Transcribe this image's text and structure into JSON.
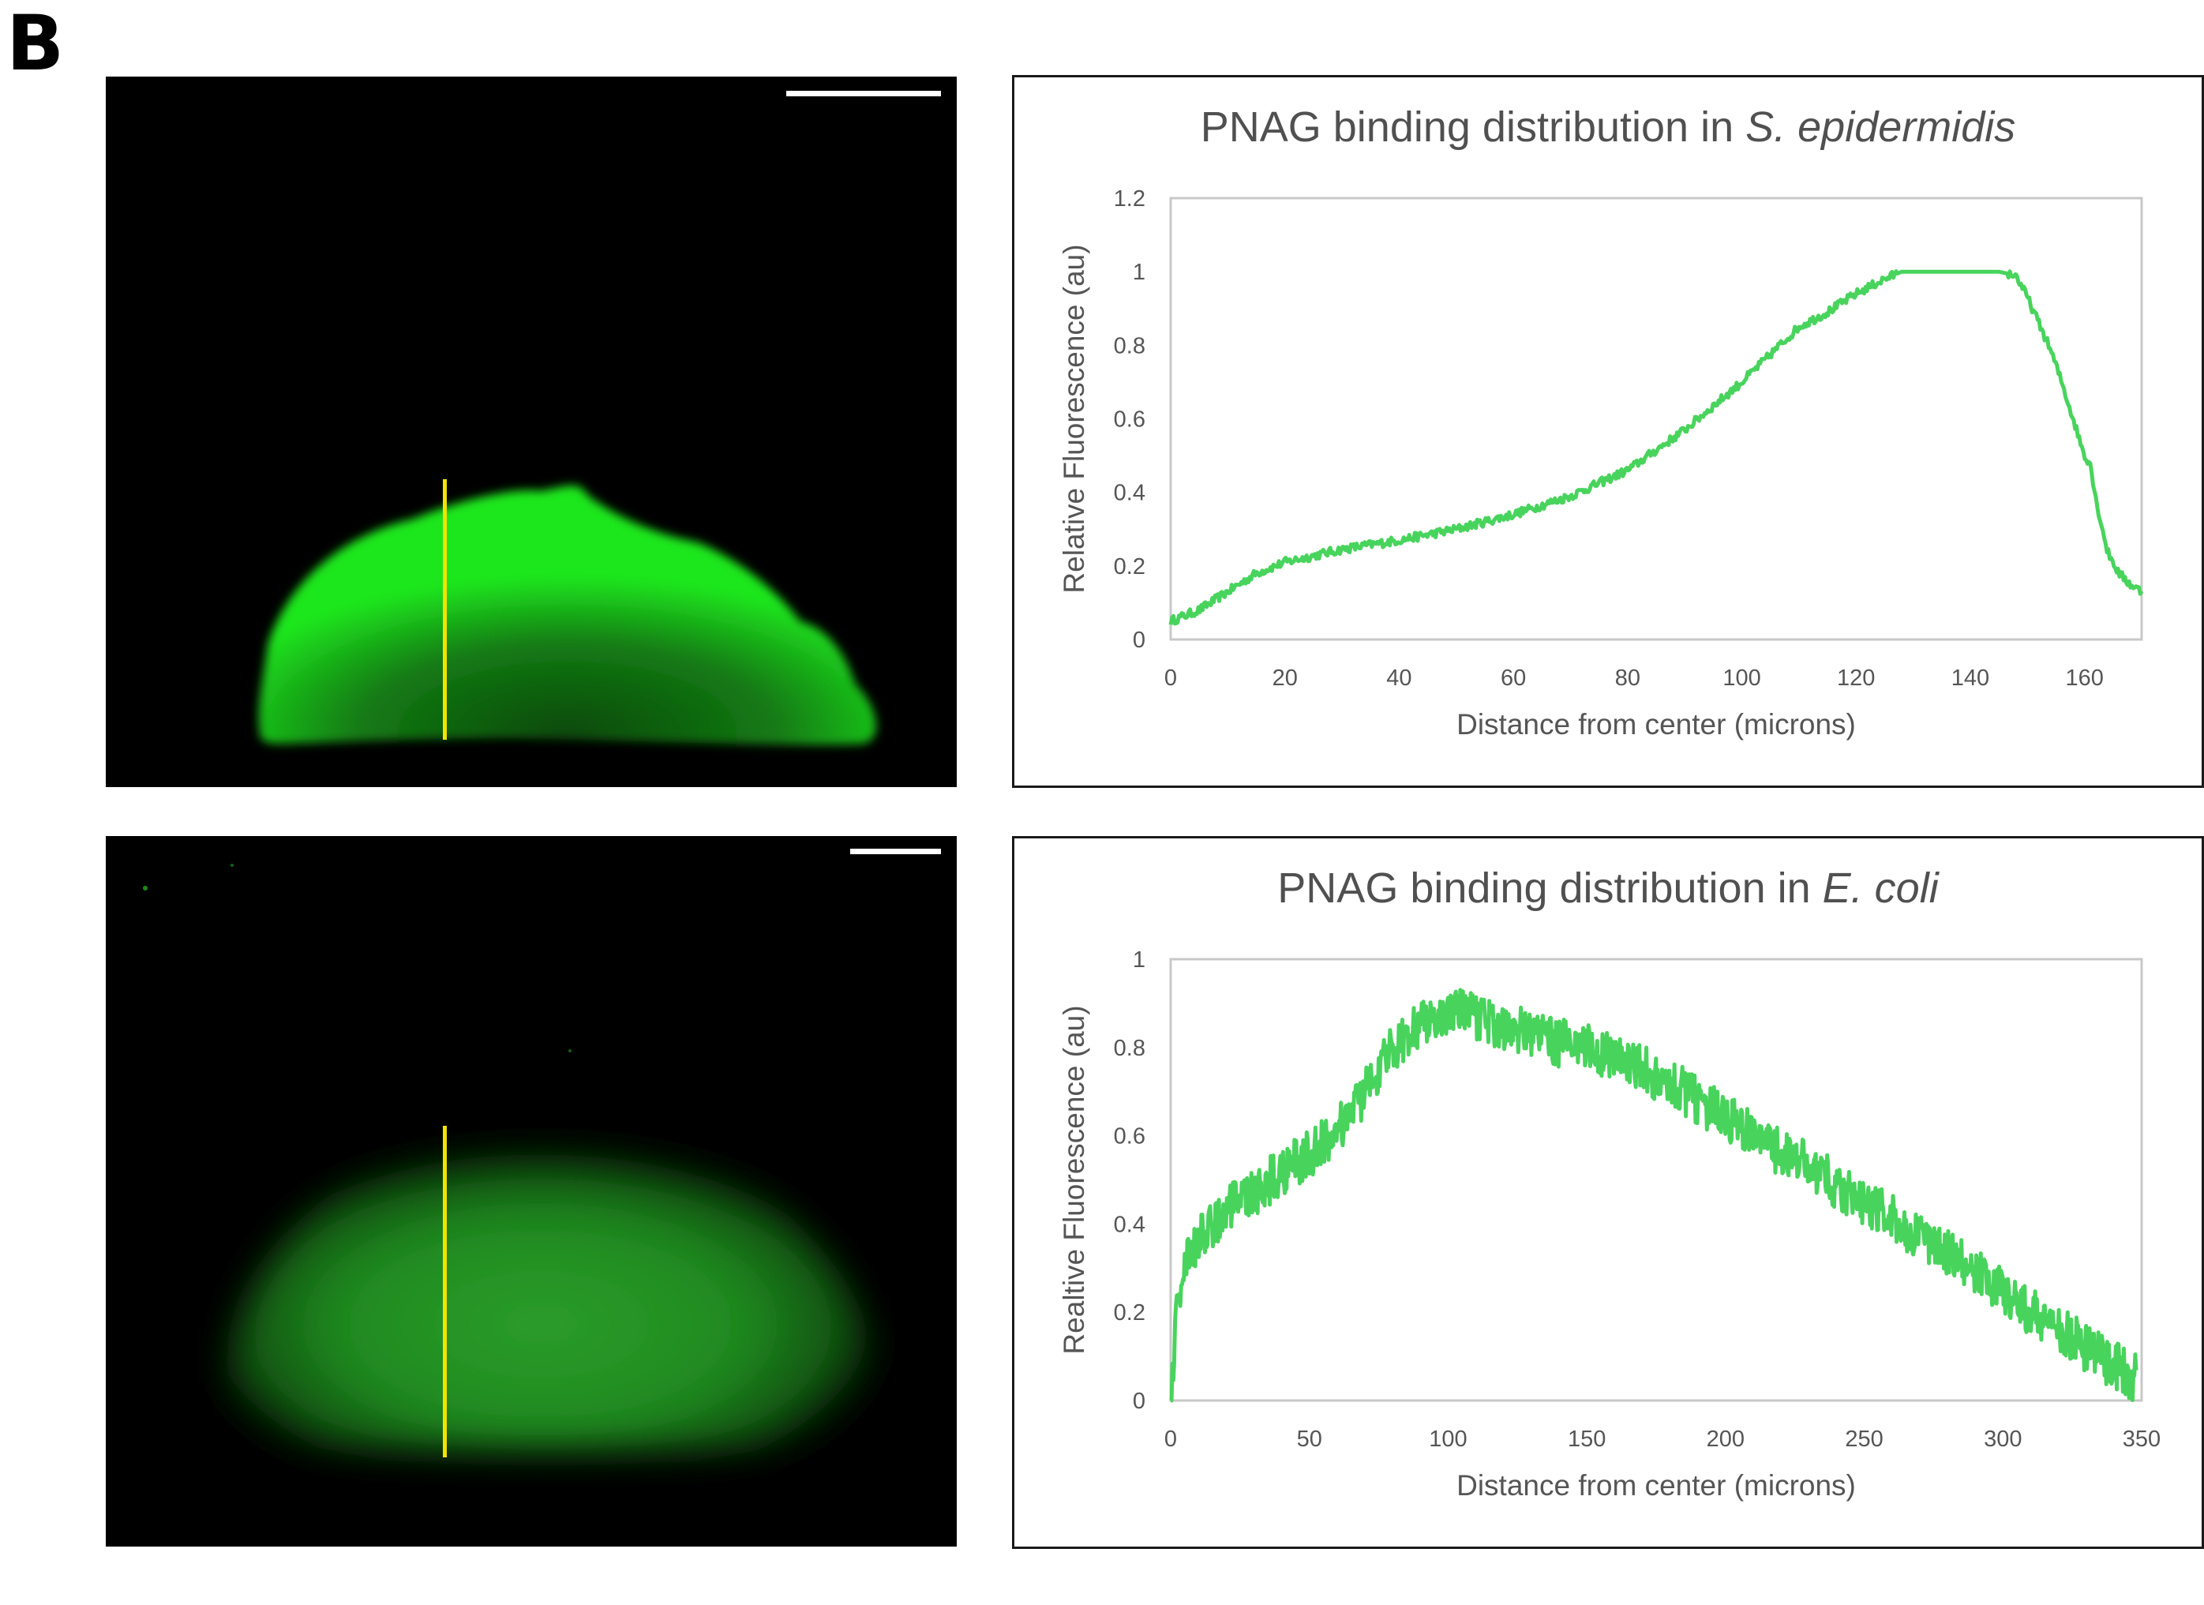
{
  "panel_label": "B",
  "colors": {
    "trace": "#48d45c",
    "profile_line": "#f2e400",
    "fluor": "#1ee61e",
    "plot_frame": "#c8c8c8"
  },
  "chart_data": [
    {
      "type": "line",
      "title_prefix": "PNAG binding distribution in ",
      "title_species": "S. epidermidis",
      "xlabel": "Distance from center (microns)",
      "ylabel": "Relative Fluorescence (au)",
      "xlim": [
        0,
        170
      ],
      "ylim": [
        0,
        1.2
      ],
      "x_ticks": [
        "0",
        "20",
        "40",
        "60",
        "80",
        "100",
        "120",
        "140",
        "160"
      ],
      "y_ticks": [
        "0",
        "0.2",
        "0.4",
        "0.6",
        "0.8",
        "1",
        "1.2"
      ],
      "grid": false,
      "series": [
        {
          "x": [
            0,
            5,
            10,
            15,
            20,
            30,
            40,
            50,
            60,
            70,
            80,
            90,
            100,
            110,
            115,
            120,
            125,
            128,
            135,
            140,
            145,
            148,
            150,
            152,
            154,
            156,
            158,
            160,
            161,
            162,
            164,
            166,
            168,
            170
          ],
          "y": [
            0.05,
            0.08,
            0.13,
            0.18,
            0.21,
            0.245,
            0.27,
            0.3,
            0.34,
            0.39,
            0.46,
            0.57,
            0.7,
            0.85,
            0.89,
            0.94,
            0.98,
            1.0,
            1.0,
            1.0,
            1.0,
            0.99,
            0.93,
            0.86,
            0.79,
            0.7,
            0.6,
            0.5,
            0.48,
            0.38,
            0.24,
            0.18,
            0.15,
            0.13
          ]
        }
      ]
    },
    {
      "type": "line",
      "title_prefix": "PNAG binding distribution in ",
      "title_species": "E. coli",
      "xlabel": "Distance from center (microns)",
      "ylabel": "Realtive Fluorescence (au)",
      "xlim": [
        0,
        350
      ],
      "ylim": [
        0,
        1.0
      ],
      "x_ticks": [
        "0",
        "50",
        "100",
        "150",
        "200",
        "250",
        "300",
        "350"
      ],
      "y_ticks": [
        "0",
        "0.2",
        "0.4",
        "0.6",
        "0.8",
        "1"
      ],
      "grid": false,
      "series": [
        {
          "x": [
            0,
            1,
            2,
            4,
            7,
            12,
            20,
            30,
            40,
            50,
            60,
            70,
            80,
            90,
            100,
            110,
            120,
            130,
            140,
            150,
            160,
            170,
            180,
            190,
            200,
            210,
            220,
            230,
            240,
            250,
            260,
            270,
            280,
            290,
            300,
            310,
            320,
            330,
            340,
            348
          ],
          "y": [
            0.0,
            0.08,
            0.2,
            0.28,
            0.33,
            0.38,
            0.43,
            0.47,
            0.52,
            0.56,
            0.61,
            0.7,
            0.8,
            0.86,
            0.88,
            0.87,
            0.85,
            0.83,
            0.81,
            0.8,
            0.78,
            0.75,
            0.72,
            0.68,
            0.64,
            0.6,
            0.56,
            0.53,
            0.49,
            0.45,
            0.41,
            0.37,
            0.33,
            0.29,
            0.25,
            0.2,
            0.16,
            0.12,
            0.08,
            0.05
          ]
        }
      ]
    }
  ]
}
